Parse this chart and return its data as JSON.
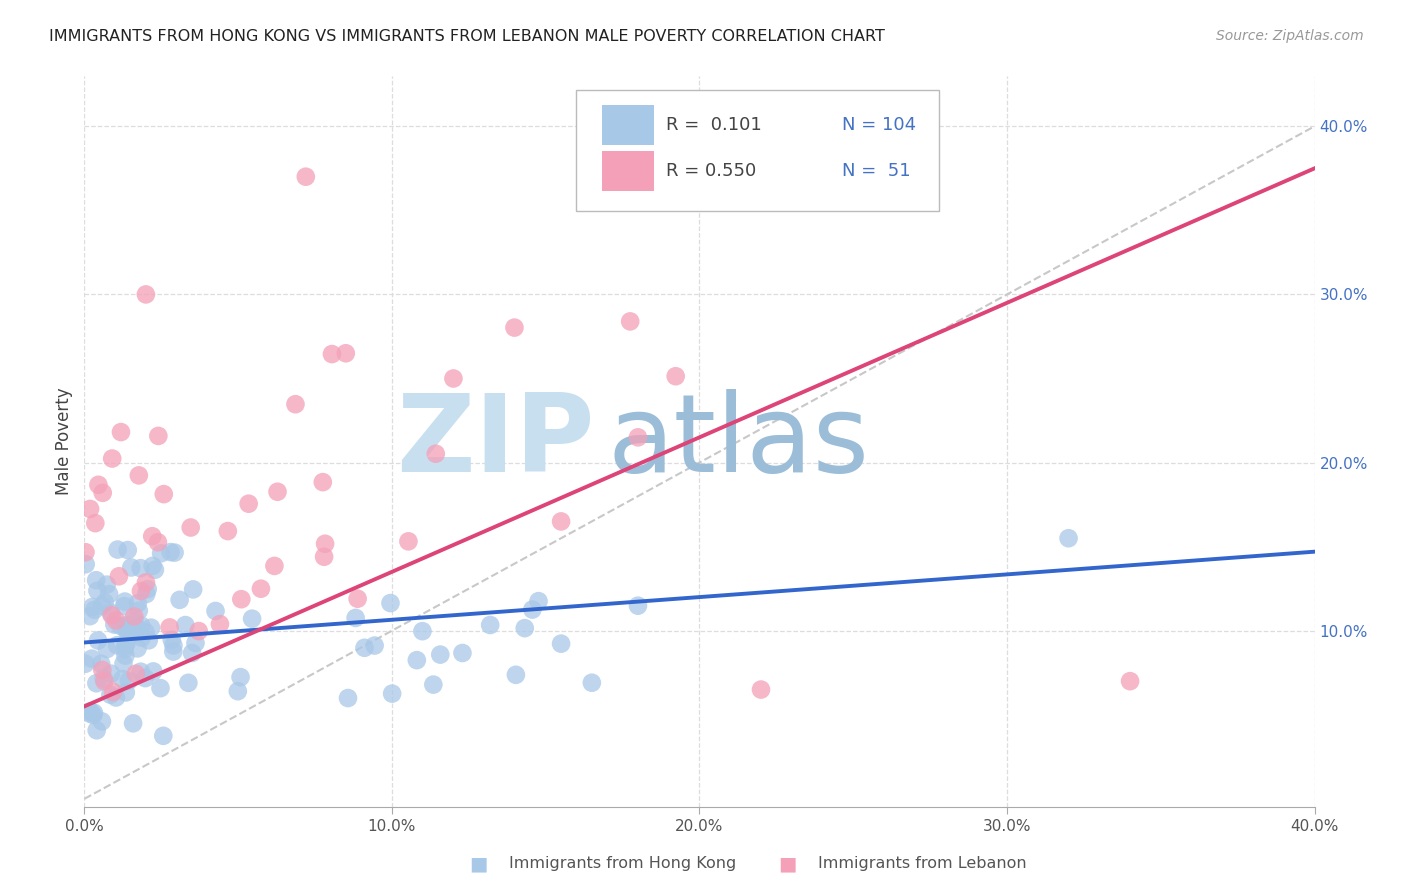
{
  "title": "IMMIGRANTS FROM HONG KONG VS IMMIGRANTS FROM LEBANON MALE POVERTY CORRELATION CHART",
  "source": "Source: ZipAtlas.com",
  "ylabel": "Male Poverty",
  "xlabel_hk": "Immigrants from Hong Kong",
  "xlabel_lb": "Immigrants from Lebanon",
  "xmin": 0.0,
  "xmax": 0.4,
  "ymin": -0.005,
  "ymax": 0.43,
  "yticks": [
    0.1,
    0.2,
    0.3,
    0.4
  ],
  "xticks": [
    0.0,
    0.1,
    0.2,
    0.3,
    0.4
  ],
  "ytick_labels": [
    "10.0%",
    "20.0%",
    "30.0%",
    "40.0%"
  ],
  "xtick_labels": [
    "0.0%",
    "10.0%",
    "20.0%",
    "30.0%",
    "40.0%"
  ],
  "hk_color": "#a8c8e8",
  "lb_color": "#f4a0b8",
  "hk_line_color": "#3366cc",
  "lb_line_color": "#dd4477",
  "diag_color": "#c8c8c8",
  "R_hk": 0.101,
  "N_hk": 104,
  "R_lb": 0.55,
  "N_lb": 51,
  "legend_R_color": "#444444",
  "legend_N_color": "#4472c4",
  "watermark_zip_color": "#c8dff0",
  "watermark_atlas_color": "#9bbdd8",
  "background_color": "#ffffff",
  "grid_color": "#dddddd",
  "title_fontsize": 11.5,
  "source_fontsize": 10,
  "tick_fontsize": 11,
  "legend_fontsize": 13
}
